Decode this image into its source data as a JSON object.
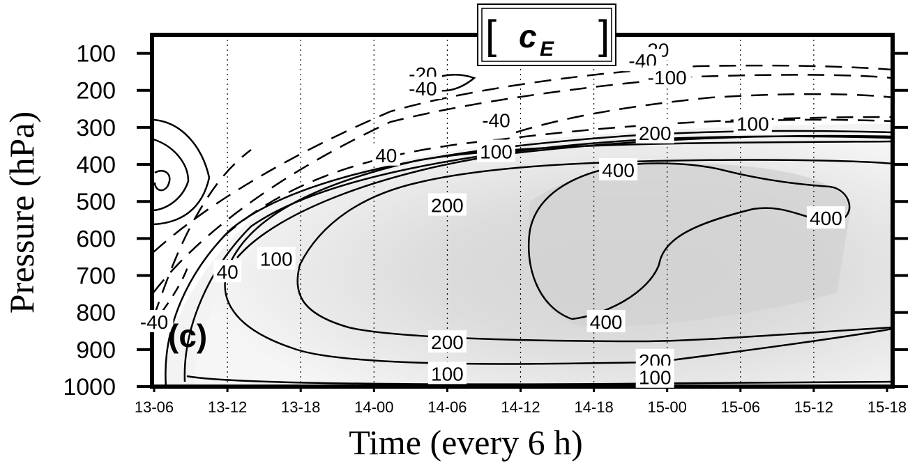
{
  "chart_data": {
    "type": "contour",
    "title": {
      "bracket_left": "[",
      "symbol": "c",
      "subscript": "E",
      "bracket_right": "]"
    },
    "panel_label": "(c)",
    "xlabel": "Time  (every 6 h)",
    "ylabel": "Pressure (hPa)",
    "x_ticks": [
      "13-06",
      "13-12",
      "13-18",
      "14-00",
      "14-06",
      "14-12",
      "14-18",
      "15-00",
      "15-06",
      "15-12",
      "15-18"
    ],
    "y_ticks": [
      100,
      200,
      300,
      400,
      500,
      600,
      700,
      800,
      900,
      1000
    ],
    "ylim": [
      1000,
      50
    ],
    "y_inverted": true,
    "grid": "vertical dotted lines at each time tick",
    "shading": "gray fill for positive values, darker for larger values",
    "contour_labels": [
      {
        "text": "-20",
        "x": "14-04",
        "p": 155
      },
      {
        "text": "-40",
        "x": "14-04",
        "p": 195
      },
      {
        "text": "-20",
        "x": "14-23",
        "p": 90
      },
      {
        "text": "-40",
        "x": "14-22",
        "p": 120
      },
      {
        "text": "-100",
        "x": "15-00",
        "p": 165
      },
      {
        "text": "-40",
        "x": "14-10",
        "p": 280
      },
      {
        "text": "40",
        "x": "14-01",
        "p": 375
      },
      {
        "text": "100",
        "x": "14-10",
        "p": 365
      },
      {
        "text": "200",
        "x": "14-23",
        "p": 315
      },
      {
        "text": "100",
        "x": "15-07",
        "p": 290
      },
      {
        "text": "400",
        "x": "14-20",
        "p": 415
      },
      {
        "text": "200",
        "x": "14-06",
        "p": 510
      },
      {
        "text": "400",
        "x": "15-13",
        "p": 545
      },
      {
        "text": "100",
        "x": "13-16",
        "p": 655
      },
      {
        "text": "40",
        "x": "13-12",
        "p": 690
      },
      {
        "text": "-40",
        "x": "13-06",
        "p": 825
      },
      {
        "text": "400",
        "x": "14-19",
        "p": 825
      },
      {
        "text": "200",
        "x": "14-06",
        "p": 880
      },
      {
        "text": "200",
        "x": "14-23",
        "p": 930
      },
      {
        "text": "100",
        "x": "14-06",
        "p": 965
      },
      {
        "text": "100",
        "x": "14-23",
        "p": 975
      }
    ]
  }
}
